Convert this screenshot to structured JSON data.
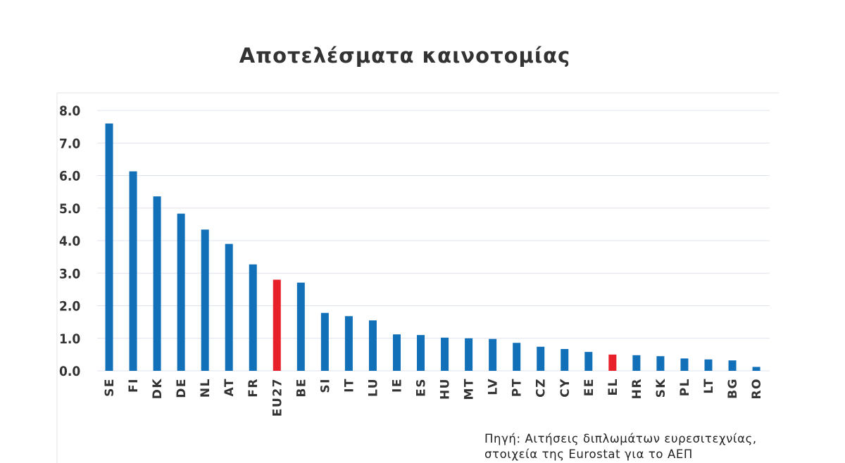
{
  "chart_data": {
    "type": "bar",
    "title": "Αποτελέσματα καινοτομίας",
    "categories": [
      "SE",
      "FI",
      "DK",
      "DE",
      "NL",
      "AT",
      "FR",
      "EU27",
      "BE",
      "SI",
      "IT",
      "LU",
      "IE",
      "ES",
      "HU",
      "MT",
      "LV",
      "PT",
      "CZ",
      "CY",
      "EE",
      "EL",
      "HR",
      "SK",
      "PL",
      "LT",
      "BG",
      "RO"
    ],
    "values": [
      7.6,
      6.13,
      5.36,
      4.83,
      4.34,
      3.9,
      3.27,
      2.8,
      2.71,
      1.78,
      1.68,
      1.55,
      1.12,
      1.1,
      1.02,
      1.0,
      0.98,
      0.86,
      0.74,
      0.67,
      0.58,
      0.5,
      0.48,
      0.45,
      0.38,
      0.35,
      0.32,
      0.12
    ],
    "highlighted": [
      "EU27",
      "EL"
    ],
    "ylim": [
      0,
      8
    ],
    "yticks": [
      "0.0",
      "1.0",
      "2.0",
      "3.0",
      "4.0",
      "5.0",
      "6.0",
      "7.0",
      "8.0"
    ],
    "xlabel": "",
    "ylabel": "",
    "grid": true,
    "colors": {
      "bar": "#1170b8",
      "highlight": "#e8202a",
      "grid": "#dde3ec",
      "axis": "#e6e6e6"
    }
  },
  "source_note": {
    "line1": "Πηγή: Αιτήσεις διπλωμάτων ευρεσιτεχνίας,",
    "line2": "στοιχεία της Eurostat για το ΑΕΠ"
  }
}
